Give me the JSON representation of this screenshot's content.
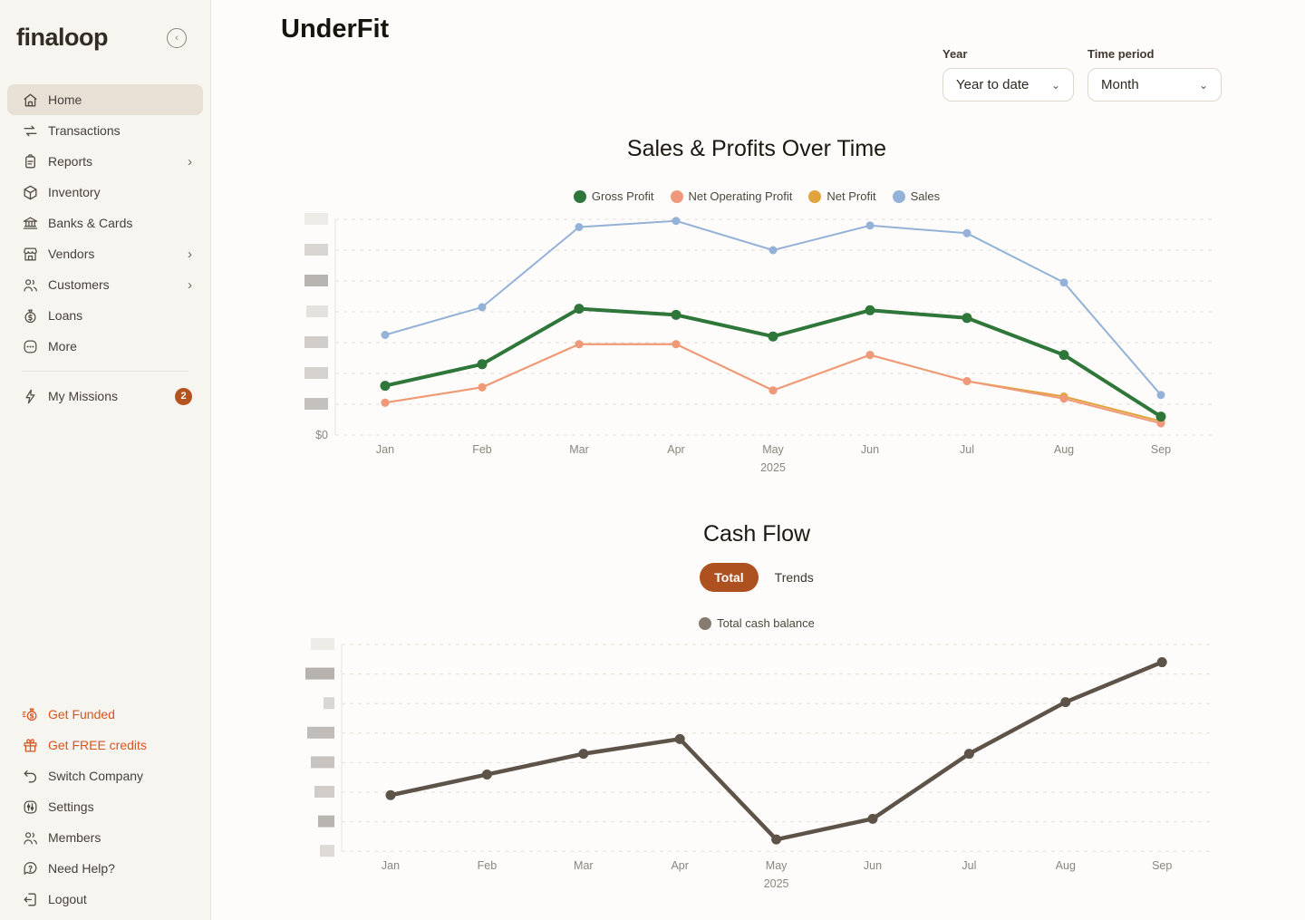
{
  "sidebar": {
    "logo": "finaloop",
    "nav": [
      {
        "label": "Home",
        "selected": true
      },
      {
        "label": "Transactions"
      },
      {
        "label": "Reports",
        "chevron": true
      },
      {
        "label": "Inventory"
      },
      {
        "label": "Banks & Cards"
      },
      {
        "label": "Vendors",
        "chevron": true
      },
      {
        "label": "Customers",
        "chevron": true
      },
      {
        "label": "Loans"
      },
      {
        "label": "More"
      }
    ],
    "missions": {
      "label": "My Missions",
      "badge": "2"
    },
    "footer": [
      {
        "label": "Get Funded",
        "accent": true
      },
      {
        "label": "Get FREE credits",
        "accent": true
      },
      {
        "label": "Switch Company"
      },
      {
        "label": "Settings"
      },
      {
        "label": "Members"
      },
      {
        "label": "Need Help?"
      },
      {
        "label": "Logout"
      }
    ]
  },
  "header": {
    "title": "UnderFit"
  },
  "filters": {
    "year_label": "Year",
    "year_value": "Year to date",
    "period_label": "Time period",
    "period_value": "Month"
  },
  "colors": {
    "accent_orange": "#d9541e",
    "badge": "#b5531f",
    "toggle_selected": "#ad5121",
    "sidebar_bg": "#f7f5f0",
    "selected_item_bg": "#e8e0d5"
  },
  "chart_data": [
    {
      "type": "line",
      "title": "Sales & Profits Over Time",
      "categories": [
        "Jan",
        "Feb",
        "Mar",
        "Apr",
        "May",
        "Jun",
        "Jul",
        "Aug",
        "Sep"
      ],
      "x_year": "2025",
      "y_zero_label": "$0",
      "y_tick_labels": "redacted (blurred in source)",
      "y_units": "relative gridline units (1 unit = 1 gridline step)",
      "ylim": [
        0,
        7.5
      ],
      "grid": true,
      "legend_position": "top",
      "series": [
        {
          "name": "Net Profit",
          "color": "#e1a33c",
          "values": [
            1.05,
            1.55,
            2.95,
            2.95,
            1.45,
            2.6,
            1.75,
            1.25,
            0.45
          ]
        },
        {
          "name": "Net Operating Profit",
          "color": "#f0997a",
          "values": [
            1.05,
            1.55,
            2.95,
            2.95,
            1.45,
            2.6,
            1.75,
            1.18,
            0.38
          ]
        },
        {
          "name": "Sales",
          "color": "#94b2d8",
          "values": [
            3.25,
            4.15,
            6.75,
            6.95,
            6.0,
            6.8,
            6.55,
            4.95,
            1.3
          ]
        },
        {
          "name": "Gross Profit",
          "color": "#2e7639",
          "values": [
            1.6,
            2.3,
            4.1,
            3.9,
            3.2,
            4.05,
            3.8,
            2.6,
            0.6
          ]
        }
      ],
      "legend_order": [
        "Gross Profit",
        "Net Operating Profit",
        "Net Profit",
        "Sales"
      ]
    },
    {
      "type": "line",
      "title": "Cash Flow",
      "toggle_options": [
        "Total",
        "Trends"
      ],
      "toggle_selected": "Total",
      "categories": [
        "Jan",
        "Feb",
        "Mar",
        "Apr",
        "May",
        "Jun",
        "Jul",
        "Aug",
        "Sep"
      ],
      "x_year": "2025",
      "y_tick_labels": "redacted (blurred in source)",
      "y_units": "relative gridline units (1 unit = 1 gridline step)",
      "ylim": [
        0,
        7.5
      ],
      "grid": true,
      "legend_position": "top",
      "series": [
        {
          "name": "Total cash balance",
          "color": "#5e5348",
          "values": [
            1.9,
            2.6,
            3.3,
            3.8,
            0.4,
            1.1,
            3.3,
            5.05,
            6.4
          ]
        }
      ]
    }
  ]
}
